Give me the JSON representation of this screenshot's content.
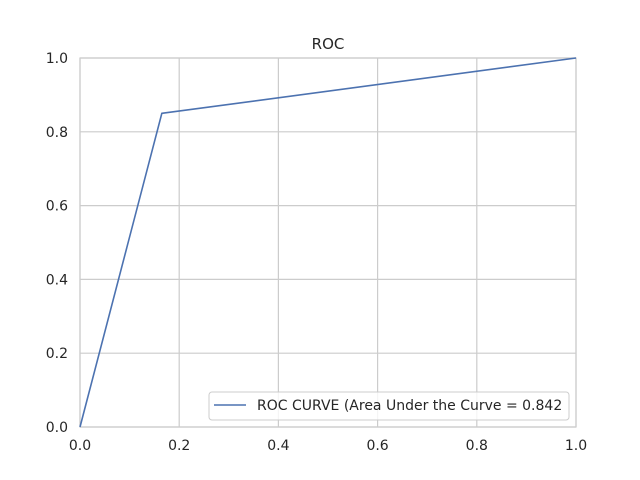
{
  "chart_data": {
    "type": "line",
    "title": "ROC",
    "xlabel": "",
    "ylabel": "",
    "xlim": [
      0,
      1
    ],
    "ylim": [
      0,
      1
    ],
    "x_ticks": [
      "0.0",
      "0.2",
      "0.4",
      "0.6",
      "0.8",
      "1.0"
    ],
    "y_ticks": [
      "0.0",
      "0.2",
      "0.4",
      "0.6",
      "0.8",
      "1.0"
    ],
    "grid": true,
    "legend_position": "lower-right",
    "series": [
      {
        "name": "ROC CURVE (Area Under the Curve = 0.842",
        "color": "#4c72b0",
        "x": [
          0,
          0.165,
          1
        ],
        "y": [
          0,
          0.85,
          1
        ]
      }
    ]
  }
}
